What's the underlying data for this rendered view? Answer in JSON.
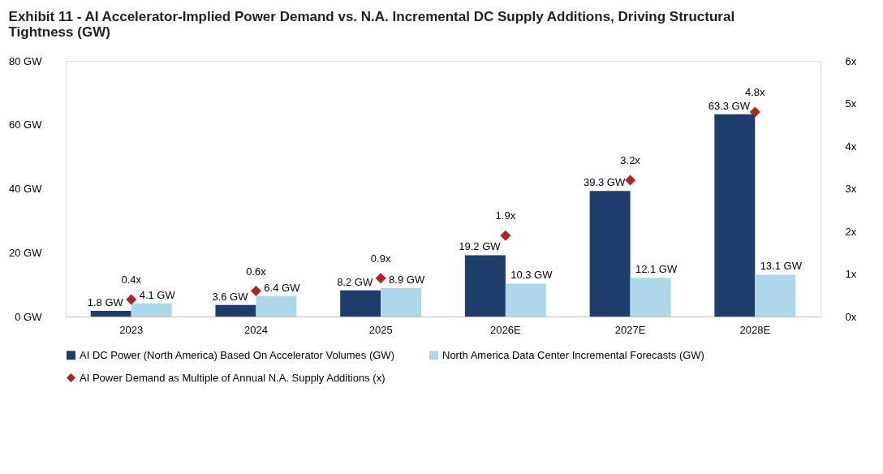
{
  "chart_data": {
    "type": "bar",
    "title": "Exhibit 11 - AI Accelerator-Implied Power Demand vs. N.A. Incremental DC Supply Additions, Driving Structural Tightness (GW)",
    "categories": [
      "2023",
      "2024",
      "2025",
      "2026E",
      "2027E",
      "2028E"
    ],
    "series": [
      {
        "name": "AI DC Power (North America) Based On Accelerator Volumes (GW)",
        "color": "#1f3d6b",
        "values": [
          1.8,
          3.6,
          8.2,
          19.2,
          39.3,
          63.3
        ],
        "value_labels": [
          "1.8 GW",
          "3.6 GW",
          "8.2 GW",
          "19.2 GW",
          "39.3 GW",
          "63.3 GW"
        ]
      },
      {
        "name": "North America Data Center Incremental Forecasts (GW)",
        "color": "#add8ea",
        "values": [
          4.1,
          6.4,
          8.9,
          10.3,
          12.1,
          13.1
        ],
        "value_labels": [
          "4.1 GW",
          "6.4 GW",
          "8.9 GW",
          "10.3 GW",
          "12.1 GW",
          "13.1 GW"
        ]
      },
      {
        "name": "AI Power Demand as Multiple of Annual N.A. Supply Additions (x)",
        "type": "scatter",
        "axis": "y2",
        "marker": "diamond",
        "color": "#b22222",
        "values": [
          0.4,
          0.6,
          0.9,
          1.9,
          3.2,
          4.8
        ],
        "value_labels": [
          "0.4x",
          "0.6x",
          "0.9x",
          "1.9x",
          "3.2x",
          "4.8x"
        ]
      }
    ],
    "ylim": [
      0,
      80
    ],
    "yticks": [
      {
        "value": 0,
        "label": "0 GW"
      },
      {
        "value": 20,
        "label": "20 GW"
      },
      {
        "value": 40,
        "label": "40 GW"
      },
      {
        "value": 60,
        "label": "60 GW"
      },
      {
        "value": 80,
        "label": "80 GW"
      }
    ],
    "y2lim": [
      0,
      6
    ],
    "y2ticks": [
      {
        "value": 0,
        "label": "0x"
      },
      {
        "value": 1,
        "label": "1x"
      },
      {
        "value": 2,
        "label": "2x"
      },
      {
        "value": 3,
        "label": "3x"
      },
      {
        "value": 4,
        "label": "4x"
      },
      {
        "value": 5,
        "label": "5x"
      },
      {
        "value": 6,
        "label": "6x"
      }
    ],
    "grid": false,
    "legend": "bottom"
  }
}
